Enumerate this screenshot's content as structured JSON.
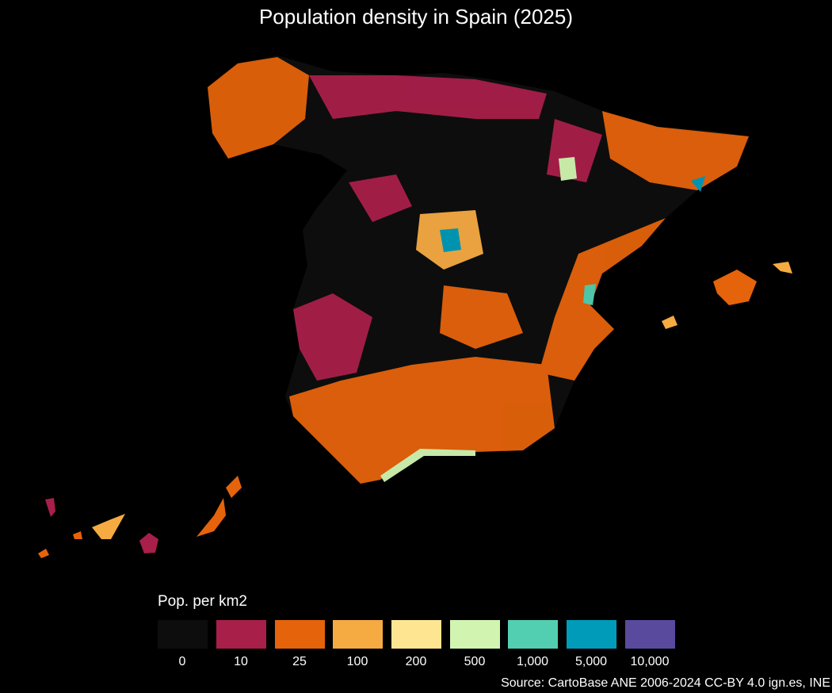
{
  "title": "Population density in Spain (2025)",
  "legend": {
    "title": "Pop. per km2",
    "bins": [
      {
        "label": "0",
        "color": "#0d0d0d"
      },
      {
        "label": "10",
        "color": "#a81f4a"
      },
      {
        "label": "25",
        "color": "#e5630b"
      },
      {
        "label": "100",
        "color": "#f5ab42"
      },
      {
        "label": "200",
        "color": "#fde592"
      },
      {
        "label": "500",
        "color": "#d1f5b1"
      },
      {
        "label": "1,000",
        "color": "#52cfb1"
      },
      {
        "label": "5,000",
        "color": "#009bb9"
      },
      {
        "label": "10,000",
        "color": "#5a4a9e"
      }
    ]
  },
  "source": "Source: CartoBase ANE 2006-2024 CC-BY 4.0 ign.es, INE"
}
